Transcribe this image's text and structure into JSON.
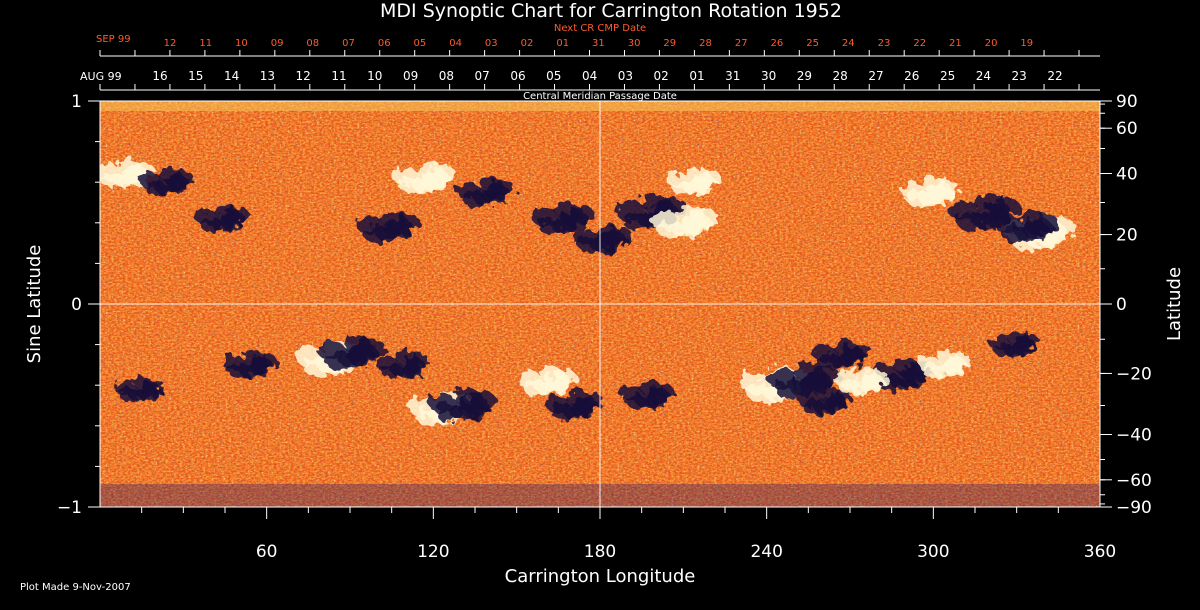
{
  "chart_data": {
    "type": "heatmap",
    "title": "MDI Synoptic Chart for Carrington Rotation 1952",
    "xlabel": "Carrington Longitude",
    "ylabel_left": "Sine Latitude",
    "ylabel_right": "Latitude",
    "xlim": [
      0,
      360
    ],
    "ylim": [
      -1,
      1
    ],
    "x_ticks": [
      "60",
      "120",
      "180",
      "240",
      "300",
      "360"
    ],
    "x_tick_values": [
      60,
      120,
      180,
      240,
      300,
      360
    ],
    "y_left_ticks": [
      "1",
      "0",
      "−1"
    ],
    "y_left_tick_values": [
      1,
      0,
      -1
    ],
    "y_right_ticks": [
      "90",
      "60",
      "40",
      "20",
      "0",
      "−20",
      "−40",
      "−60",
      "−90"
    ],
    "y_right_tick_values": [
      90,
      60,
      40,
      20,
      0,
      -20,
      -40,
      -60,
      -90
    ],
    "grid": {
      "vertical_at": 180,
      "horizontal_at": 0
    },
    "top_axis_cmp": {
      "label": "Central Meridian Passage Date",
      "month_label": "AUG 99",
      "dates": [
        "16",
        "15",
        "14",
        "13",
        "12",
        "11",
        "10",
        "09",
        "08",
        "07",
        "06",
        "05",
        "04",
        "03",
        "02",
        "01",
        "31",
        "30",
        "29",
        "28",
        "27",
        "26",
        "25",
        "24",
        "23",
        "22"
      ]
    },
    "top_axis_next_cmp": {
      "label": "Next CR CMP Date",
      "month_label": "SEP 99",
      "dates": [
        "12",
        "11",
        "10",
        "09",
        "08",
        "07",
        "06",
        "05",
        "04",
        "03",
        "02",
        "01",
        "31",
        "30",
        "29",
        "28",
        "27",
        "26",
        "25",
        "24",
        "23",
        "22",
        "21",
        "20",
        "19"
      ]
    },
    "colors": {
      "background": "#e8541c",
      "negative": "#1a1440",
      "positive": "#fff6c8",
      "grid": "#ffffff",
      "next_axis": "#ff5a2a"
    },
    "active_regions": [
      {
        "lon": 10,
        "sinlat": 0.64,
        "polarity": "positive",
        "strength": 0.7
      },
      {
        "lon": 25,
        "sinlat": 0.6,
        "polarity": "negative",
        "strength": 0.6
      },
      {
        "lon": 45,
        "sinlat": 0.42,
        "polarity": "negative",
        "strength": 0.6
      },
      {
        "lon": 118,
        "sinlat": 0.62,
        "polarity": "positive",
        "strength": 0.8
      },
      {
        "lon": 105,
        "sinlat": 0.38,
        "polarity": "negative",
        "strength": 0.8
      },
      {
        "lon": 140,
        "sinlat": 0.55,
        "polarity": "negative",
        "strength": 0.7
      },
      {
        "lon": 168,
        "sinlat": 0.42,
        "polarity": "negative",
        "strength": 0.8
      },
      {
        "lon": 182,
        "sinlat": 0.32,
        "polarity": "negative",
        "strength": 0.7
      },
      {
        "lon": 200,
        "sinlat": 0.45,
        "polarity": "negative",
        "strength": 1.0
      },
      {
        "lon": 212,
        "sinlat": 0.4,
        "polarity": "positive",
        "strength": 0.9
      },
      {
        "lon": 215,
        "sinlat": 0.6,
        "polarity": "positive",
        "strength": 0.6
      },
      {
        "lon": 300,
        "sinlat": 0.55,
        "polarity": "positive",
        "strength": 0.7
      },
      {
        "lon": 320,
        "sinlat": 0.45,
        "polarity": "negative",
        "strength": 1.0
      },
      {
        "lon": 340,
        "sinlat": 0.35,
        "polarity": "positive",
        "strength": 1.0
      },
      {
        "lon": 335,
        "sinlat": 0.38,
        "polarity": "negative",
        "strength": 0.8
      },
      {
        "lon": 85,
        "sinlat": -0.27,
        "polarity": "positive",
        "strength": 1.0
      },
      {
        "lon": 92,
        "sinlat": -0.24,
        "polarity": "negative",
        "strength": 0.9
      },
      {
        "lon": 55,
        "sinlat": -0.3,
        "polarity": "negative",
        "strength": 0.6
      },
      {
        "lon": 110,
        "sinlat": -0.3,
        "polarity": "negative",
        "strength": 0.6
      },
      {
        "lon": 125,
        "sinlat": -0.52,
        "polarity": "positive",
        "strength": 0.9
      },
      {
        "lon": 132,
        "sinlat": -0.5,
        "polarity": "negative",
        "strength": 0.9
      },
      {
        "lon": 162,
        "sinlat": -0.38,
        "polarity": "positive",
        "strength": 0.7
      },
      {
        "lon": 172,
        "sinlat": -0.5,
        "polarity": "negative",
        "strength": 0.7
      },
      {
        "lon": 198,
        "sinlat": -0.45,
        "polarity": "negative",
        "strength": 0.6
      },
      {
        "lon": 245,
        "sinlat": -0.4,
        "polarity": "positive",
        "strength": 1.0
      },
      {
        "lon": 255,
        "sinlat": -0.38,
        "polarity": "negative",
        "strength": 1.0
      },
      {
        "lon": 268,
        "sinlat": -0.25,
        "polarity": "negative",
        "strength": 0.7
      },
      {
        "lon": 262,
        "sinlat": -0.48,
        "polarity": "negative",
        "strength": 0.6
      },
      {
        "lon": 290,
        "sinlat": -0.35,
        "polarity": "negative",
        "strength": 0.8
      },
      {
        "lon": 275,
        "sinlat": -0.38,
        "polarity": "positive",
        "strength": 0.6
      },
      {
        "lon": 305,
        "sinlat": -0.3,
        "polarity": "positive",
        "strength": 0.6
      },
      {
        "lon": 330,
        "sinlat": -0.2,
        "polarity": "negative",
        "strength": 0.5
      },
      {
        "lon": 15,
        "sinlat": -0.42,
        "polarity": "negative",
        "strength": 0.5
      }
    ]
  },
  "footer": {
    "plot_made": "Plot Made  9-Nov-2007"
  }
}
